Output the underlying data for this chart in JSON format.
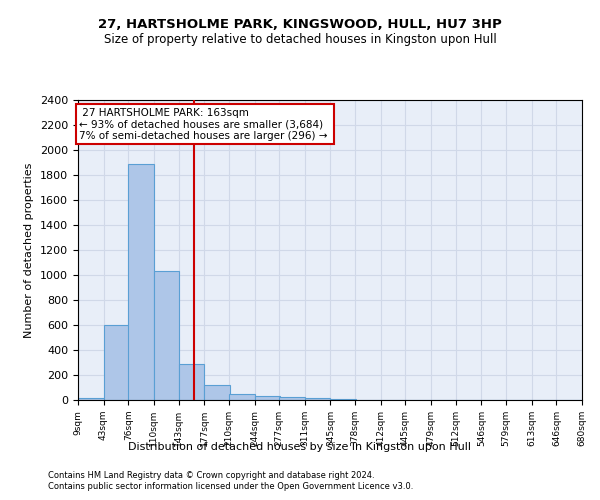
{
  "title1": "27, HARTSHOLME PARK, KINGSWOOD, HULL, HU7 3HP",
  "title2": "Size of property relative to detached houses in Kingston upon Hull",
  "xlabel": "Distribution of detached houses by size in Kingston upon Hull",
  "ylabel": "Number of detached properties",
  "footer1": "Contains HM Land Registry data © Crown copyright and database right 2024.",
  "footer2": "Contains public sector information licensed under the Open Government Licence v3.0.",
  "annotation_line1": "27 HARTSHOLME PARK: 163sqm",
  "annotation_line2": "← 93% of detached houses are smaller (3,684)",
  "annotation_line3": "7% of semi-detached houses are larger (296) →",
  "property_size": 163,
  "bin_edges": [
    9,
    43,
    76,
    110,
    143,
    177,
    210,
    244,
    277,
    311,
    345,
    378,
    412,
    445,
    479,
    512,
    546,
    579,
    613,
    646,
    680
  ],
  "bar_heights": [
    20,
    600,
    1890,
    1030,
    290,
    120,
    50,
    35,
    25,
    20,
    5,
    3,
    2,
    2,
    1,
    1,
    0,
    0,
    0,
    0
  ],
  "bar_color": "#aec6e8",
  "bar_edge_color": "#5a9fd4",
  "vline_color": "#cc0000",
  "annotation_box_color": "#cc0000",
  "ylim": [
    0,
    2400
  ],
  "yticks": [
    0,
    200,
    400,
    600,
    800,
    1000,
    1200,
    1400,
    1600,
    1800,
    2000,
    2200,
    2400
  ],
  "grid_color": "#d0d8e8",
  "bg_color": "#e8eef8",
  "fig_width": 6.0,
  "fig_height": 5.0,
  "dpi": 100
}
